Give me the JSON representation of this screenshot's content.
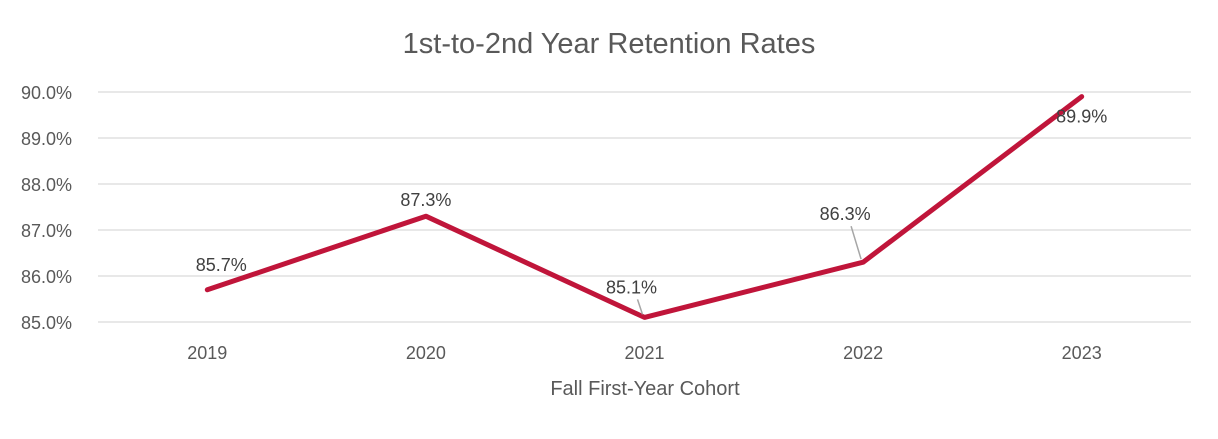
{
  "chart_data": {
    "type": "line",
    "title": "1st-to-2nd Year Retention Rates",
    "xlabel": "Fall First-Year Cohort",
    "ylabel": "",
    "categories": [
      "2019",
      "2020",
      "2021",
      "2022",
      "2023"
    ],
    "series": [
      {
        "values": [
          85.7,
          87.3,
          85.1,
          86.3,
          89.9
        ],
        "data_labels": [
          "85.7%",
          "87.3%",
          "85.1%",
          "86.3%",
          "89.9%"
        ],
        "color": "#c0153a"
      }
    ],
    "ylim": [
      85.0,
      90.0
    ],
    "yticks": [
      85.0,
      86.0,
      87.0,
      88.0,
      89.0,
      90.0
    ],
    "ytick_labels": [
      "85.0%",
      "86.0%",
      "87.0%",
      "88.0%",
      "89.0%",
      "90.0%"
    ],
    "grid": true,
    "legend": "none"
  }
}
